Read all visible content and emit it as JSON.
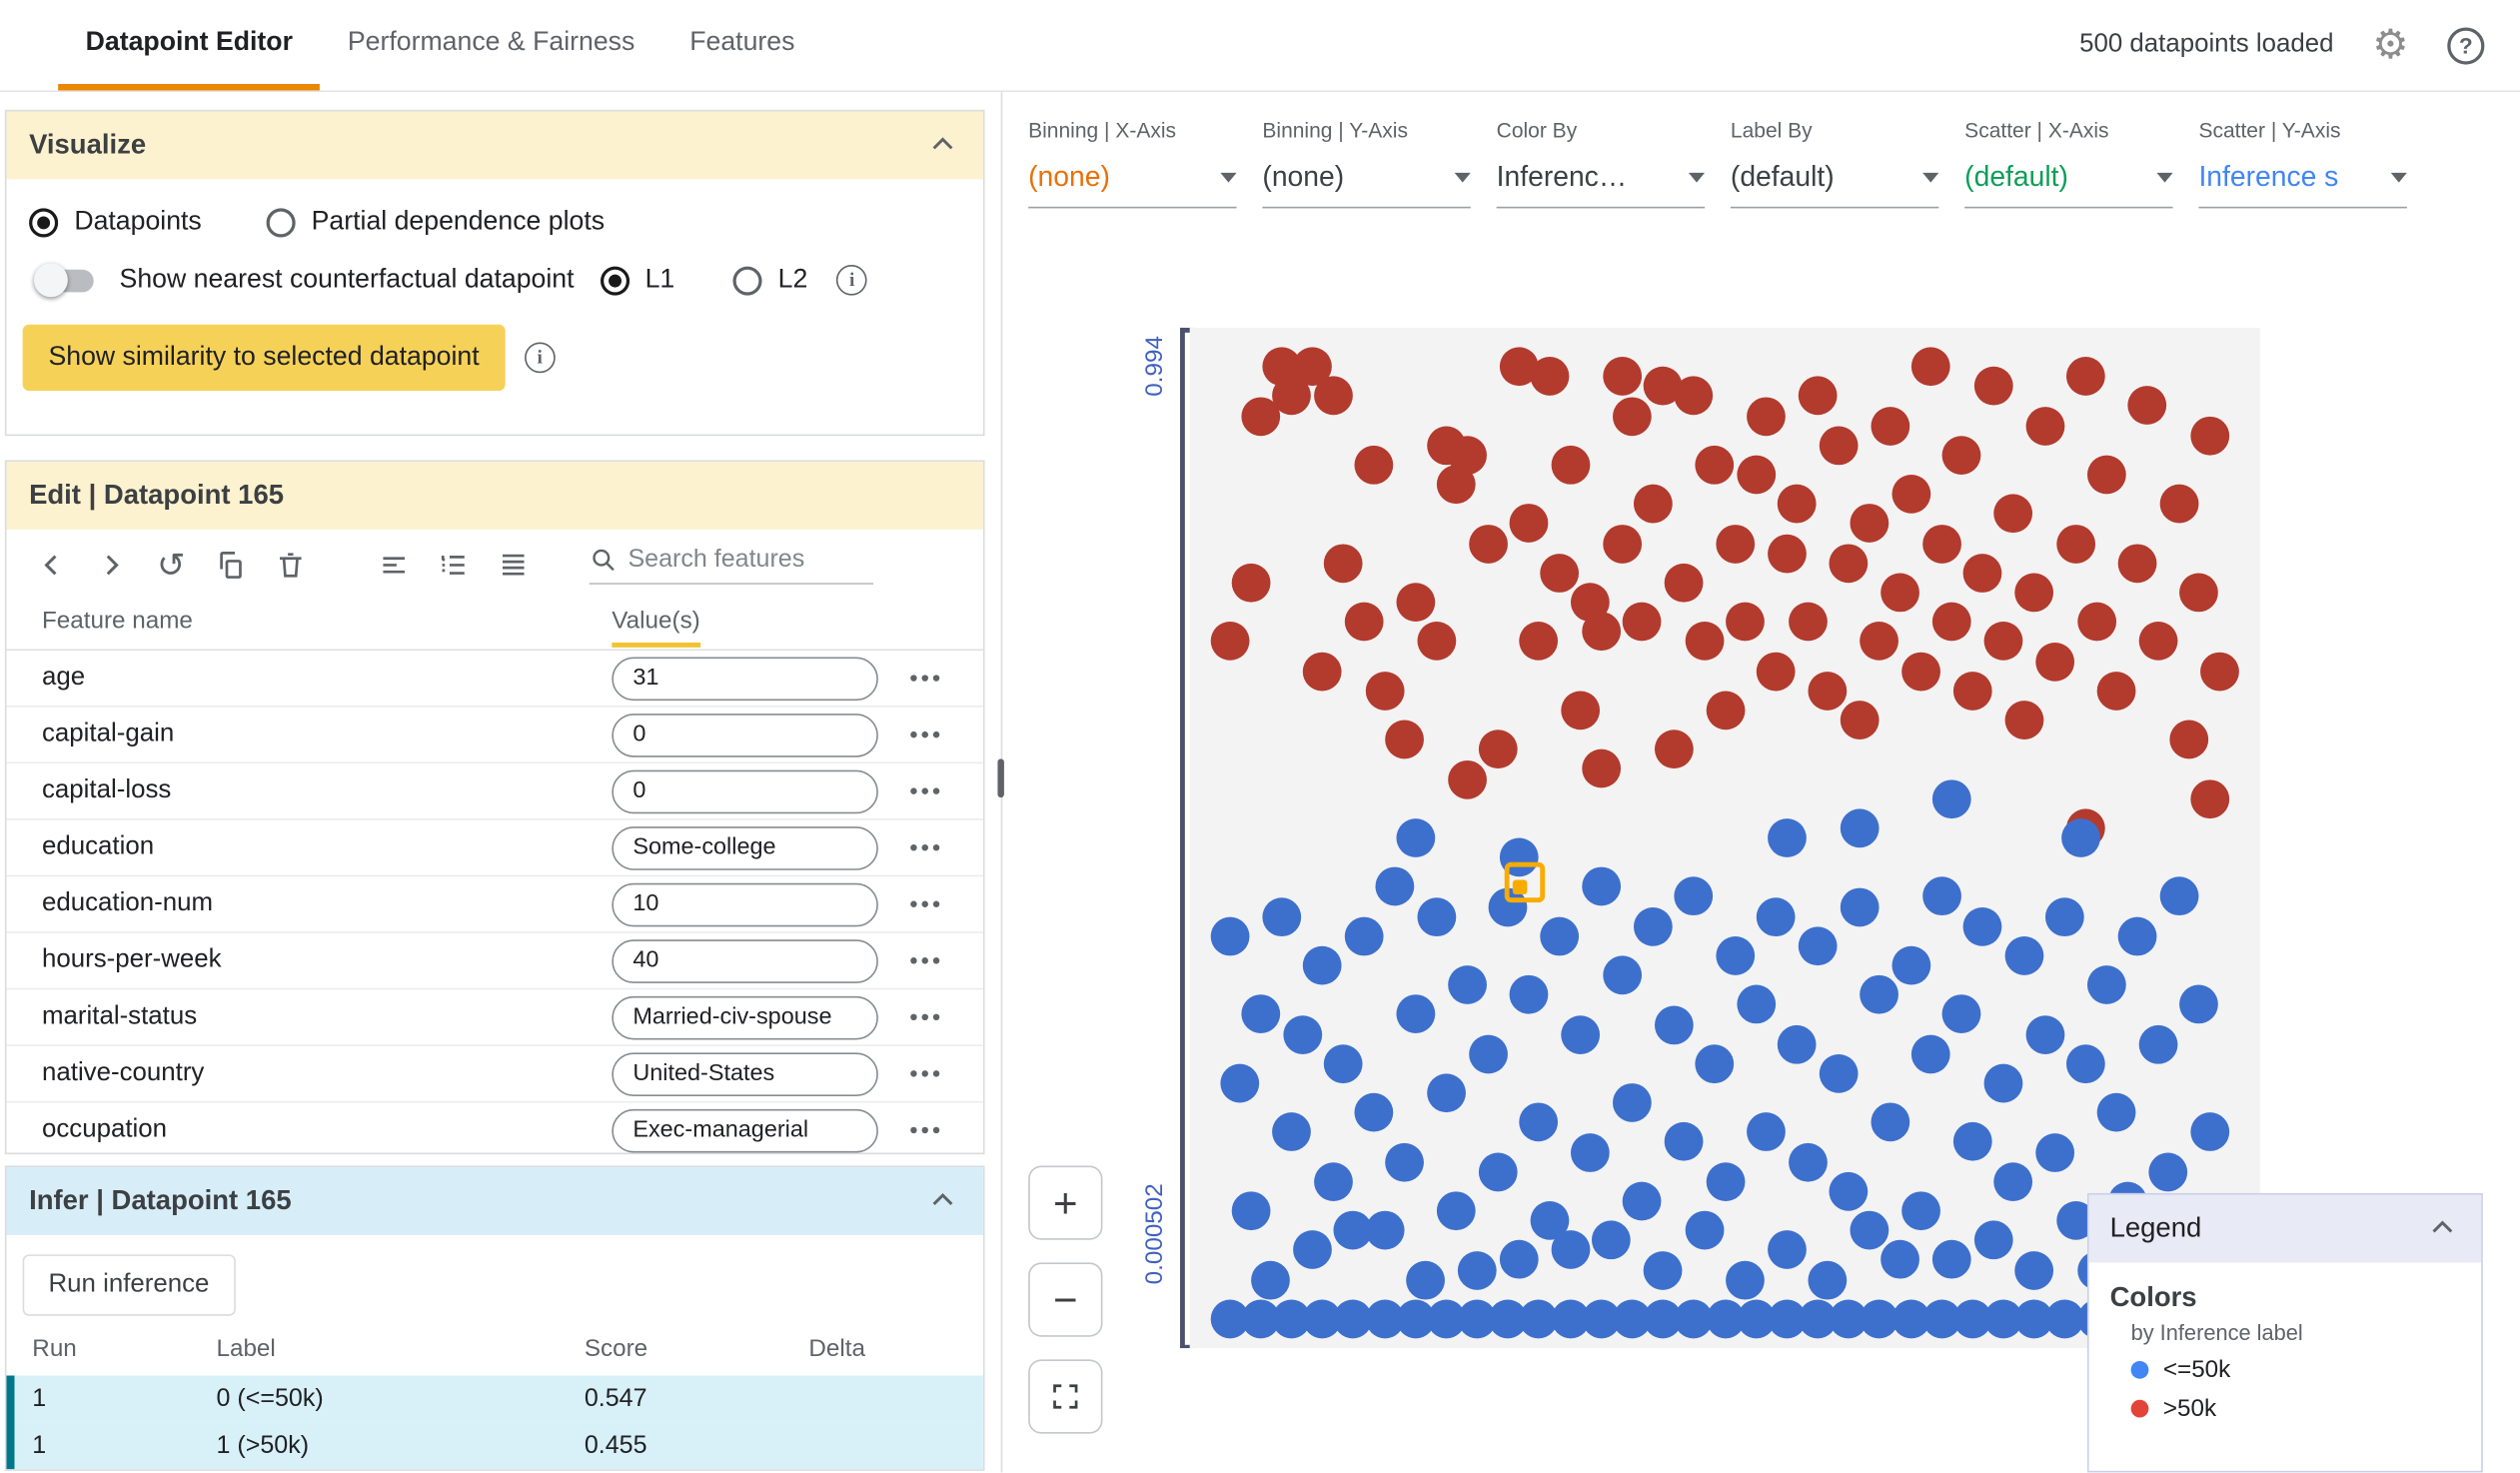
{
  "topbar": {
    "tabs": [
      {
        "label": "Datapoint Editor",
        "active": true
      },
      {
        "label": "Performance & Fairness",
        "active": false
      },
      {
        "label": "Features",
        "active": false
      }
    ],
    "status": "500 datapoints loaded"
  },
  "icons": {
    "gear": "⚙",
    "help": "?",
    "history": "↺"
  },
  "visualize": {
    "title": "Visualize",
    "radio_datapoints": "Datapoints",
    "radio_pdp": "Partial dependence plots",
    "toggle_label": "Show nearest counterfactual datapoint",
    "l1": "L1",
    "l2": "L2",
    "similarity_button": "Show similarity to selected datapoint"
  },
  "edit": {
    "title": "Edit | Datapoint 165",
    "search_placeholder": "Search features",
    "columns": {
      "name": "Feature name",
      "values": "Value(s)"
    },
    "features": [
      {
        "name": "age",
        "value": "31"
      },
      {
        "name": "capital-gain",
        "value": "0"
      },
      {
        "name": "capital-loss",
        "value": "0"
      },
      {
        "name": "education",
        "value": "Some-college"
      },
      {
        "name": "education-num",
        "value": "10"
      },
      {
        "name": "hours-per-week",
        "value": "40"
      },
      {
        "name": "marital-status",
        "value": "Married-civ-spouse"
      },
      {
        "name": "native-country",
        "value": "United-States"
      },
      {
        "name": "occupation",
        "value": "Exec-managerial"
      }
    ]
  },
  "infer": {
    "title": "Infer | Datapoint 165",
    "run_button": "Run inference",
    "columns": [
      "Run",
      "Label",
      "Score",
      "Delta"
    ],
    "rows": [
      {
        "run": "1",
        "label": "0 (<=50k)",
        "score": "0.547",
        "delta": ""
      },
      {
        "run": "1",
        "label": "1 (>50k)",
        "score": "0.455",
        "delta": ""
      }
    ]
  },
  "controls": [
    {
      "label": "Binning | X-Axis",
      "value": "(none)",
      "color": "#e8710a"
    },
    {
      "label": "Binning | Y-Axis",
      "value": "(none)",
      "color": "#3c4043"
    },
    {
      "label": "Color By",
      "value": "Inferenc…",
      "color": "#3c4043"
    },
    {
      "label": "Label By",
      "value": "(default)",
      "color": "#3c4043"
    },
    {
      "label": "Scatter | X-Axis",
      "value": "(default)",
      "color": "#0f9d58"
    },
    {
      "label": "Scatter | Y-Axis",
      "value": "Inference s",
      "color": "#4285f4"
    }
  ],
  "zoom": {
    "plus": "+",
    "minus": "−"
  },
  "legend": {
    "title": "Legend",
    "section": "Colors",
    "subtitle": "by Inference label",
    "items": [
      {
        "label": "<=50k",
        "color": "#4285f4"
      },
      {
        "label": ">50k",
        "color": "#e3443a"
      }
    ]
  },
  "chart_data": {
    "type": "scatter",
    "y_axis": {
      "top_label": "0.994",
      "bottom_label": "0.000502",
      "range": [
        0.000502,
        0.994
      ]
    },
    "colors": {
      "red": "#b23b2e",
      "blue": "#3d70cd"
    },
    "selected_point": {
      "x": 0.305,
      "y": 0.545
    },
    "points_red": [
      [
        0.02,
        0.3
      ],
      [
        0.04,
        0.24
      ],
      [
        0.05,
        0.07
      ],
      [
        0.07,
        0.02
      ],
      [
        0.08,
        0.05
      ],
      [
        0.1,
        0.02
      ],
      [
        0.11,
        0.33
      ],
      [
        0.12,
        0.05
      ],
      [
        0.13,
        0.22
      ],
      [
        0.15,
        0.28
      ],
      [
        0.16,
        0.12
      ],
      [
        0.17,
        0.35
      ],
      [
        0.19,
        0.4
      ],
      [
        0.2,
        0.26
      ],
      [
        0.22,
        0.3
      ],
      [
        0.23,
        0.1
      ],
      [
        0.24,
        0.14
      ],
      [
        0.25,
        0.11
      ],
      [
        0.25,
        0.44
      ],
      [
        0.27,
        0.2
      ],
      [
        0.28,
        0.41
      ],
      [
        0.3,
        0.02
      ],
      [
        0.31,
        0.18
      ],
      [
        0.32,
        0.3
      ],
      [
        0.33,
        0.03
      ],
      [
        0.34,
        0.23
      ],
      [
        0.35,
        0.12
      ],
      [
        0.36,
        0.37
      ],
      [
        0.37,
        0.26
      ],
      [
        0.38,
        0.29
      ],
      [
        0.38,
        0.43
      ],
      [
        0.4,
        0.03
      ],
      [
        0.4,
        0.2
      ],
      [
        0.41,
        0.07
      ],
      [
        0.42,
        0.28
      ],
      [
        0.43,
        0.16
      ],
      [
        0.44,
        0.04
      ],
      [
        0.45,
        0.41
      ],
      [
        0.46,
        0.24
      ],
      [
        0.47,
        0.05
      ],
      [
        0.48,
        0.3
      ],
      [
        0.49,
        0.12
      ],
      [
        0.5,
        0.37
      ],
      [
        0.51,
        0.2
      ],
      [
        0.52,
        0.28
      ],
      [
        0.53,
        0.13
      ],
      [
        0.54,
        0.07
      ],
      [
        0.55,
        0.33
      ],
      [
        0.56,
        0.21
      ],
      [
        0.57,
        0.16
      ],
      [
        0.58,
        0.28
      ],
      [
        0.59,
        0.05
      ],
      [
        0.6,
        0.35
      ],
      [
        0.61,
        0.1
      ],
      [
        0.62,
        0.22
      ],
      [
        0.63,
        0.38
      ],
      [
        0.64,
        0.18
      ],
      [
        0.65,
        0.3
      ],
      [
        0.66,
        0.08
      ],
      [
        0.67,
        0.25
      ],
      [
        0.68,
        0.15
      ],
      [
        0.69,
        0.33
      ],
      [
        0.7,
        0.02
      ],
      [
        0.71,
        0.2
      ],
      [
        0.72,
        0.28
      ],
      [
        0.73,
        0.11
      ],
      [
        0.74,
        0.35
      ],
      [
        0.75,
        0.23
      ],
      [
        0.76,
        0.04
      ],
      [
        0.77,
        0.3
      ],
      [
        0.78,
        0.17
      ],
      [
        0.79,
        0.38
      ],
      [
        0.8,
        0.25
      ],
      [
        0.81,
        0.08
      ],
      [
        0.82,
        0.32
      ],
      [
        0.84,
        0.2
      ],
      [
        0.85,
        0.03
      ],
      [
        0.86,
        0.28
      ],
      [
        0.87,
        0.13
      ],
      [
        0.88,
        0.35
      ],
      [
        0.9,
        0.22
      ],
      [
        0.91,
        0.06
      ],
      [
        0.92,
        0.3
      ],
      [
        0.94,
        0.16
      ],
      [
        0.95,
        0.4
      ],
      [
        0.96,
        0.25
      ],
      [
        0.97,
        0.09
      ],
      [
        0.98,
        0.33
      ],
      [
        0.85,
        0.49
      ],
      [
        0.97,
        0.46
      ]
    ],
    "points_blue": [
      [
        0.02,
        0.6
      ],
      [
        0.03,
        0.75
      ],
      [
        0.04,
        0.88
      ],
      [
        0.05,
        0.68
      ],
      [
        0.06,
        0.95
      ],
      [
        0.07,
        0.58
      ],
      [
        0.08,
        0.8
      ],
      [
        0.09,
        0.7
      ],
      [
        0.1,
        0.92
      ],
      [
        0.11,
        0.63
      ],
      [
        0.12,
        0.85
      ],
      [
        0.13,
        0.73
      ],
      [
        0.14,
        0.9
      ],
      [
        0.15,
        0.6
      ],
      [
        0.16,
        0.78
      ],
      [
        0.17,
        0.9
      ],
      [
        0.18,
        0.55
      ],
      [
        0.19,
        0.83
      ],
      [
        0.2,
        0.68
      ],
      [
        0.21,
        0.95
      ],
      [
        0.22,
        0.58
      ],
      [
        0.23,
        0.76
      ],
      [
        0.24,
        0.88
      ],
      [
        0.25,
        0.65
      ],
      [
        0.26,
        0.94
      ],
      [
        0.27,
        0.72
      ],
      [
        0.28,
        0.84
      ],
      [
        0.29,
        0.57
      ],
      [
        0.3,
        0.93
      ],
      [
        0.31,
        0.66
      ],
      [
        0.32,
        0.79
      ],
      [
        0.33,
        0.89
      ],
      [
        0.34,
        0.6
      ],
      [
        0.35,
        0.92
      ],
      [
        0.36,
        0.7
      ],
      [
        0.37,
        0.82
      ],
      [
        0.38,
        0.55
      ],
      [
        0.39,
        0.91
      ],
      [
        0.4,
        0.64
      ],
      [
        0.41,
        0.77
      ],
      [
        0.42,
        0.87
      ],
      [
        0.43,
        0.59
      ],
      [
        0.44,
        0.94
      ],
      [
        0.45,
        0.69
      ],
      [
        0.46,
        0.81
      ],
      [
        0.47,
        0.56
      ],
      [
        0.48,
        0.9
      ],
      [
        0.49,
        0.73
      ],
      [
        0.5,
        0.85
      ],
      [
        0.51,
        0.62
      ],
      [
        0.52,
        0.95
      ],
      [
        0.53,
        0.67
      ],
      [
        0.54,
        0.8
      ],
      [
        0.55,
        0.58
      ],
      [
        0.56,
        0.92
      ],
      [
        0.57,
        0.71
      ],
      [
        0.58,
        0.83
      ],
      [
        0.59,
        0.61
      ],
      [
        0.6,
        0.95
      ],
      [
        0.61,
        0.74
      ],
      [
        0.62,
        0.86
      ],
      [
        0.63,
        0.57
      ],
      [
        0.64,
        0.9
      ],
      [
        0.65,
        0.66
      ],
      [
        0.66,
        0.79
      ],
      [
        0.67,
        0.93
      ],
      [
        0.68,
        0.63
      ],
      [
        0.69,
        0.88
      ],
      [
        0.7,
        0.72
      ],
      [
        0.71,
        0.56
      ],
      [
        0.72,
        0.93
      ],
      [
        0.73,
        0.68
      ],
      [
        0.74,
        0.81
      ],
      [
        0.75,
        0.59
      ],
      [
        0.76,
        0.91
      ],
      [
        0.77,
        0.75
      ],
      [
        0.78,
        0.85
      ],
      [
        0.79,
        0.62
      ],
      [
        0.8,
        0.94
      ],
      [
        0.81,
        0.7
      ],
      [
        0.82,
        0.82
      ],
      [
        0.83,
        0.58
      ],
      [
        0.84,
        0.89
      ],
      [
        0.85,
        0.73
      ],
      [
        0.86,
        0.94
      ],
      [
        0.87,
        0.65
      ],
      [
        0.88,
        0.78
      ],
      [
        0.89,
        0.87
      ],
      [
        0.9,
        0.6
      ],
      [
        0.91,
        0.92
      ],
      [
        0.92,
        0.71
      ],
      [
        0.93,
        0.84
      ],
      [
        0.94,
        0.56
      ],
      [
        0.95,
        0.9
      ],
      [
        0.96,
        0.67
      ],
      [
        0.97,
        0.8
      ],
      [
        0.98,
        0.94
      ],
      [
        0.2,
        0.5
      ],
      [
        0.3,
        0.52
      ],
      [
        0.56,
        0.5
      ],
      [
        0.63,
        0.49
      ],
      [
        0.72,
        0.46
      ],
      [
        0.845,
        0.5
      ],
      [
        0.02,
        0.99
      ],
      [
        0.05,
        0.99
      ],
      [
        0.08,
        0.99
      ],
      [
        0.11,
        0.99
      ],
      [
        0.14,
        0.99
      ],
      [
        0.17,
        0.99
      ],
      [
        0.2,
        0.99
      ],
      [
        0.23,
        0.99
      ],
      [
        0.26,
        0.99
      ],
      [
        0.29,
        0.99
      ],
      [
        0.32,
        0.99
      ],
      [
        0.35,
        0.99
      ],
      [
        0.38,
        0.99
      ],
      [
        0.41,
        0.99
      ],
      [
        0.44,
        0.99
      ],
      [
        0.47,
        0.99
      ],
      [
        0.5,
        0.99
      ],
      [
        0.53,
        0.99
      ],
      [
        0.56,
        0.99
      ],
      [
        0.59,
        0.99
      ],
      [
        0.62,
        0.99
      ],
      [
        0.65,
        0.99
      ],
      [
        0.68,
        0.99
      ],
      [
        0.71,
        0.99
      ],
      [
        0.74,
        0.99
      ],
      [
        0.77,
        0.99
      ],
      [
        0.8,
        0.99
      ],
      [
        0.83,
        0.99
      ],
      [
        0.86,
        0.99
      ],
      [
        0.89,
        0.99
      ],
      [
        0.92,
        0.99
      ]
    ]
  }
}
